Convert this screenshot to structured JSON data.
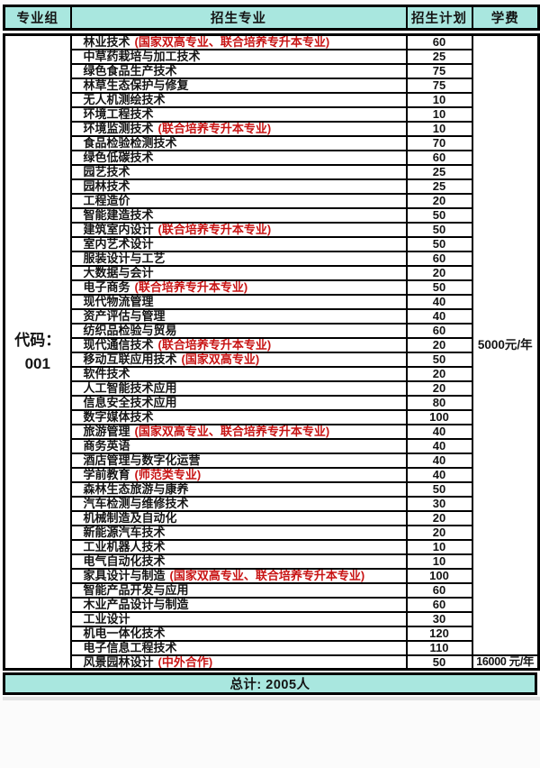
{
  "colors": {
    "header_bg": "#a9e7df",
    "note_red": "#c81414"
  },
  "header": {
    "columns": [
      "专业组",
      "招生专业",
      "招生计划",
      "学费"
    ]
  },
  "table": {
    "group": {
      "line1": "代码：",
      "line2": "001"
    },
    "fees": {
      "standard": "5000元/年",
      "last_row": "16000 元/年"
    },
    "rows": [
      {
        "major": "林业技术",
        "note": "(国家双高专业、联合培养专升本专业)",
        "plan": "60"
      },
      {
        "major": "中草药栽培与加工技术",
        "note": "",
        "plan": "25"
      },
      {
        "major": "绿色食品生产技术",
        "note": "",
        "plan": "75"
      },
      {
        "major": "林草生态保护与修复",
        "note": "",
        "plan": "75"
      },
      {
        "major": "无人机测绘技术",
        "note": "",
        "plan": "10"
      },
      {
        "major": "环境工程技术",
        "note": "",
        "plan": "10"
      },
      {
        "major": "环境监测技术",
        "note": "(联合培养专升本专业)",
        "plan": "10"
      },
      {
        "major": "食品检验检测技术",
        "note": "",
        "plan": "70"
      },
      {
        "major": "绿色低碳技术",
        "note": "",
        "plan": "60"
      },
      {
        "major": "园艺技术",
        "note": "",
        "plan": "25"
      },
      {
        "major": "园林技术",
        "note": "",
        "plan": "25"
      },
      {
        "major": "工程造价",
        "note": "",
        "plan": "20"
      },
      {
        "major": "智能建造技术",
        "note": "",
        "plan": "50"
      },
      {
        "major": "建筑室内设计",
        "note": "(联合培养专升本专业)",
        "plan": "50"
      },
      {
        "major": "室内艺术设计",
        "note": "",
        "plan": "50"
      },
      {
        "major": "服装设计与工艺",
        "note": "",
        "plan": "60"
      },
      {
        "major": "大数据与会计",
        "note": "",
        "plan": "20"
      },
      {
        "major": "电子商务",
        "note": "(联合培养专升本专业)",
        "plan": "50"
      },
      {
        "major": "现代物流管理",
        "note": "",
        "plan": "40"
      },
      {
        "major": "资产评估与管理",
        "note": "",
        "plan": "40"
      },
      {
        "major": "纺织品检验与贸易",
        "note": "",
        "plan": "60"
      },
      {
        "major": "现代通信技术",
        "note": "(联合培养专升本专业)",
        "plan": "20"
      },
      {
        "major": "移动互联应用技术",
        "note": "(国家双高专业)",
        "plan": "50"
      },
      {
        "major": "软件技术",
        "note": "",
        "plan": "20"
      },
      {
        "major": "人工智能技术应用",
        "note": "",
        "plan": "20"
      },
      {
        "major": "信息安全技术应用",
        "note": "",
        "plan": "80"
      },
      {
        "major": "数字媒体技术",
        "note": "",
        "plan": "100"
      },
      {
        "major": "旅游管理",
        "note": "(国家双高专业、联合培养专升本专业)",
        "plan": "40"
      },
      {
        "major": "商务英语",
        "note": "",
        "plan": "40"
      },
      {
        "major": "酒店管理与数字化运营",
        "note": "",
        "plan": "40"
      },
      {
        "major": "学前教育",
        "note": "(师范类专业)",
        "plan": "40"
      },
      {
        "major": "森林生态旅游与康养",
        "note": "",
        "plan": "50"
      },
      {
        "major": "汽车检测与维修技术",
        "note": "",
        "plan": "30"
      },
      {
        "major": "机械制造及自动化",
        "note": "",
        "plan": "20"
      },
      {
        "major": "新能源汽车技术",
        "note": "",
        "plan": "20"
      },
      {
        "major": "工业机器人技术",
        "note": "",
        "plan": "10"
      },
      {
        "major": "电气自动化技术",
        "note": "",
        "plan": "10"
      },
      {
        "major": "家具设计与制造",
        "note": "(国家双高专业、联合培养专升本专业)",
        "plan": "100"
      },
      {
        "major": "智能产品开发与应用",
        "note": "",
        "plan": "60"
      },
      {
        "major": "木业产品设计与制造",
        "note": "",
        "plan": "60"
      },
      {
        "major": "工业设计",
        "note": "",
        "plan": "30"
      },
      {
        "major": "机电一体化技术",
        "note": "",
        "plan": "120"
      },
      {
        "major": "电子信息工程技术",
        "note": "",
        "plan": "110"
      },
      {
        "major": "风景园林设计",
        "note": "(中外合作)",
        "plan": "50"
      }
    ]
  },
  "footer": {
    "total": "总计: 2005人"
  }
}
